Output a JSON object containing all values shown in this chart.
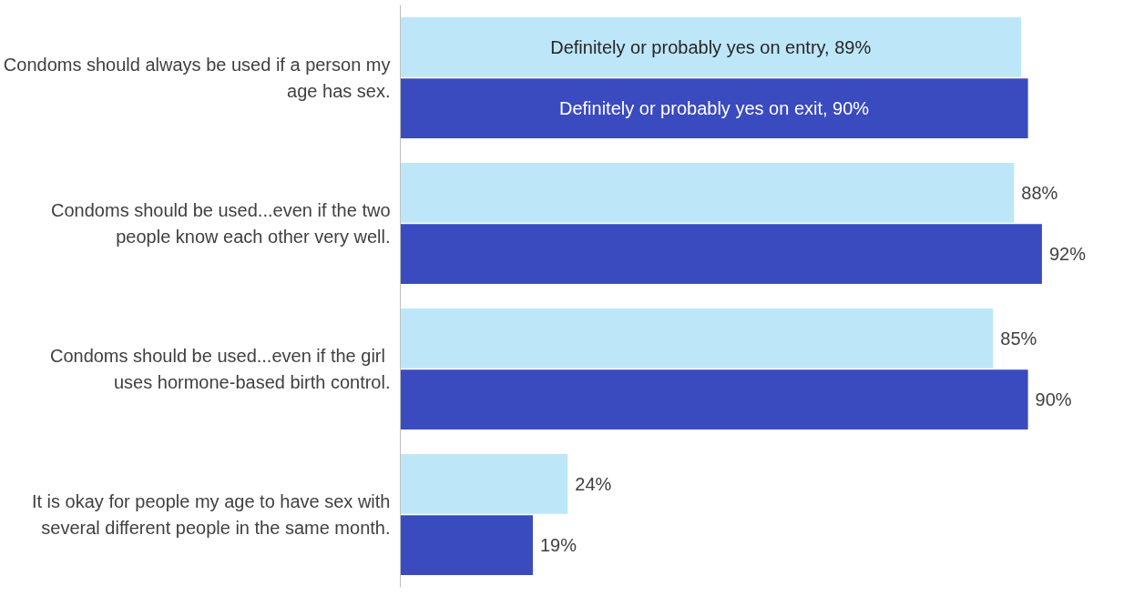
{
  "chart_data": {
    "type": "bar",
    "orientation": "horizontal",
    "categories": [
      "Condoms should always be used if a person my age has sex.",
      "Condoms should be used...even if the two people know each other very well.",
      "Condoms should  be used...even if the girl uses hormone-based birth control.",
      "It is okay for people my age to have sex with several different people in the same month."
    ],
    "series": [
      {
        "color": "#bde7f9",
        "values": [
          89,
          88,
          85,
          24
        ],
        "value_labels": [
          "Definitely or probably yes on entry, 89%",
          "88%",
          "85%",
          "24%"
        ]
      },
      {
        "color": "#3a4bbf",
        "values": [
          90,
          92,
          90,
          19
        ],
        "value_labels": [
          "Definitely or probably yes on exit, 90%",
          "92%",
          "90%",
          "19%"
        ]
      }
    ],
    "tick_labels": "y"
  }
}
